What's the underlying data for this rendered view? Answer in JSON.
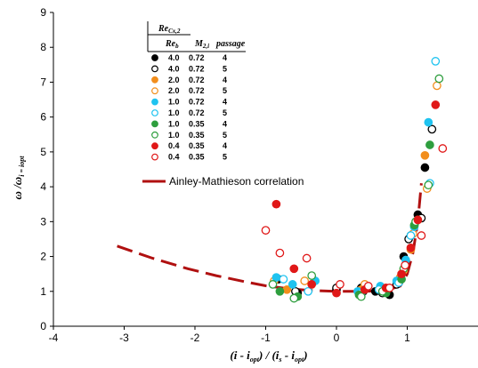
{
  "chart_data": {
    "type": "scatter",
    "xlabel": "(i - i_opt) / (i_s - i_opt)",
    "ylabel": "ω / ω_i = iopt",
    "xlim": [
      -4,
      2
    ],
    "ylim": [
      0,
      9
    ],
    "xticks": [
      "-4",
      "-3",
      "-2",
      "-1",
      "0",
      "1"
    ],
    "yticks": [
      "0",
      "1",
      "2",
      "3",
      "4",
      "5",
      "6",
      "7",
      "8",
      "9"
    ],
    "grid": false,
    "legend_position": "top-left",
    "legend_header": {
      "col1_top": "Re_Cx,2",
      "col1_bottom": "Re_b",
      "col2": "M_2,i",
      "col3": "passage"
    },
    "series": [
      {
        "re": "4.0",
        "mach": "0.72",
        "passage": "4",
        "color": "#000000",
        "filled": true,
        "points": [
          [
            -0.82,
            1.35
          ],
          [
            -0.55,
            0.95
          ],
          [
            0.0,
            1.05
          ],
          [
            0.35,
            1.1
          ],
          [
            0.55,
            1.0
          ],
          [
            0.75,
            0.9
          ],
          [
            0.95,
            2.0
          ],
          [
            1.05,
            2.6
          ],
          [
            1.15,
            3.2
          ],
          [
            1.25,
            4.55
          ]
        ]
      },
      {
        "re": "4.0",
        "mach": "0.72",
        "passage": "5",
        "color": "#000000",
        "filled": false,
        "points": [
          [
            -0.58,
            1.0
          ],
          [
            0.0,
            1.1
          ],
          [
            0.38,
            1.0
          ],
          [
            0.65,
            0.95
          ],
          [
            0.85,
            1.2
          ],
          [
            1.02,
            2.5
          ],
          [
            1.2,
            3.1
          ],
          [
            1.35,
            5.65
          ]
        ]
      },
      {
        "re": "2.0",
        "mach": "0.72",
        "passage": "4",
        "color": "#f28e1c",
        "filled": true,
        "points": [
          [
            -0.7,
            1.05
          ],
          [
            -0.35,
            1.2
          ],
          [
            0.35,
            1.05
          ],
          [
            0.65,
            1.1
          ],
          [
            0.9,
            1.4
          ],
          [
            1.05,
            2.2
          ],
          [
            1.15,
            3.05
          ],
          [
            1.25,
            4.9
          ]
        ]
      },
      {
        "re": "2.0",
        "mach": "0.72",
        "passage": "5",
        "color": "#f28e1c",
        "filled": false,
        "points": [
          [
            -0.88,
            1.3
          ],
          [
            -0.45,
            1.3
          ],
          [
            0.4,
            1.2
          ],
          [
            0.7,
            1.0
          ],
          [
            0.95,
            1.6
          ],
          [
            1.08,
            2.65
          ],
          [
            1.28,
            3.95
          ],
          [
            1.42,
            6.9
          ]
        ]
      },
      {
        "re": "1.0",
        "mach": "0.72",
        "passage": "4",
        "color": "#1fc3f0",
        "filled": true,
        "points": [
          [
            -0.85,
            1.4
          ],
          [
            -0.62,
            1.2
          ],
          [
            -0.3,
            1.3
          ],
          [
            0.3,
            1.0
          ],
          [
            0.62,
            1.15
          ],
          [
            0.85,
            1.3
          ],
          [
            0.98,
            1.9
          ],
          [
            1.1,
            2.85
          ],
          [
            1.3,
            5.85
          ]
        ]
      },
      {
        "re": "1.0",
        "mach": "0.72",
        "passage": "5",
        "color": "#1fc3f0",
        "filled": false,
        "points": [
          [
            -0.75,
            1.35
          ],
          [
            -0.4,
            1.0
          ],
          [
            0.35,
            0.95
          ],
          [
            0.6,
            1.05
          ],
          [
            0.88,
            1.25
          ],
          [
            1.05,
            2.6
          ],
          [
            1.32,
            4.1
          ],
          [
            1.4,
            7.6
          ]
        ]
      },
      {
        "re": "1.0",
        "mach": "0.35",
        "passage": "4",
        "color": "#2e9e3e",
        "filled": true,
        "points": [
          [
            -0.8,
            1.0
          ],
          [
            -0.55,
            0.85
          ],
          [
            0.32,
            0.9
          ],
          [
            0.7,
            0.95
          ],
          [
            0.92,
            1.35
          ],
          [
            1.1,
            2.9
          ],
          [
            1.32,
            5.2
          ]
        ]
      },
      {
        "re": "1.0",
        "mach": "0.35",
        "passage": "5",
        "color": "#2e9e3e",
        "filled": false,
        "points": [
          [
            -0.9,
            1.2
          ],
          [
            -0.6,
            0.8
          ],
          [
            -0.35,
            1.45
          ],
          [
            0.35,
            0.85
          ],
          [
            0.65,
            1.0
          ],
          [
            0.95,
            1.65
          ],
          [
            1.12,
            3.0
          ],
          [
            1.3,
            4.05
          ],
          [
            1.45,
            7.1
          ]
        ]
      },
      {
        "re": "0.4",
        "mach": "0.35",
        "passage": "4",
        "color": "#e01818",
        "filled": true,
        "points": [
          [
            -0.85,
            3.5
          ],
          [
            -0.6,
            1.65
          ],
          [
            -0.35,
            1.2
          ],
          [
            0.0,
            0.95
          ],
          [
            0.4,
            1.05
          ],
          [
            0.7,
            1.1
          ],
          [
            0.92,
            1.5
          ],
          [
            1.05,
            2.25
          ],
          [
            1.15,
            3.05
          ],
          [
            1.4,
            6.35
          ]
        ]
      },
      {
        "re": "0.4",
        "mach": "0.35",
        "passage": "5",
        "color": "#e01818",
        "filled": false,
        "points": [
          [
            -1.0,
            2.75
          ],
          [
            -0.8,
            2.1
          ],
          [
            -0.42,
            1.95
          ],
          [
            0.05,
            1.2
          ],
          [
            0.45,
            1.15
          ],
          [
            0.75,
            1.1
          ],
          [
            0.97,
            1.75
          ],
          [
            1.2,
            2.6
          ],
          [
            1.5,
            5.1
          ]
        ]
      }
    ],
    "correlation": {
      "name": "Ainley-Mathieson correlation",
      "color": "#b01010",
      "points": [
        [
          -3.1,
          2.3
        ],
        [
          -2.6,
          1.95
        ],
        [
          -2.1,
          1.65
        ],
        [
          -1.7,
          1.45
        ],
        [
          -1.3,
          1.28
        ],
        [
          -1.0,
          1.16
        ],
        [
          -0.7,
          1.08
        ],
        [
          -0.4,
          1.03
        ],
        [
          0.0,
          1.0
        ],
        [
          0.4,
          1.0
        ],
        [
          0.7,
          1.03
        ],
        [
          0.9,
          1.15
        ],
        [
          1.0,
          1.5
        ],
        [
          1.08,
          2.1
        ],
        [
          1.15,
          3.0
        ],
        [
          1.2,
          4.1
        ]
      ]
    }
  }
}
